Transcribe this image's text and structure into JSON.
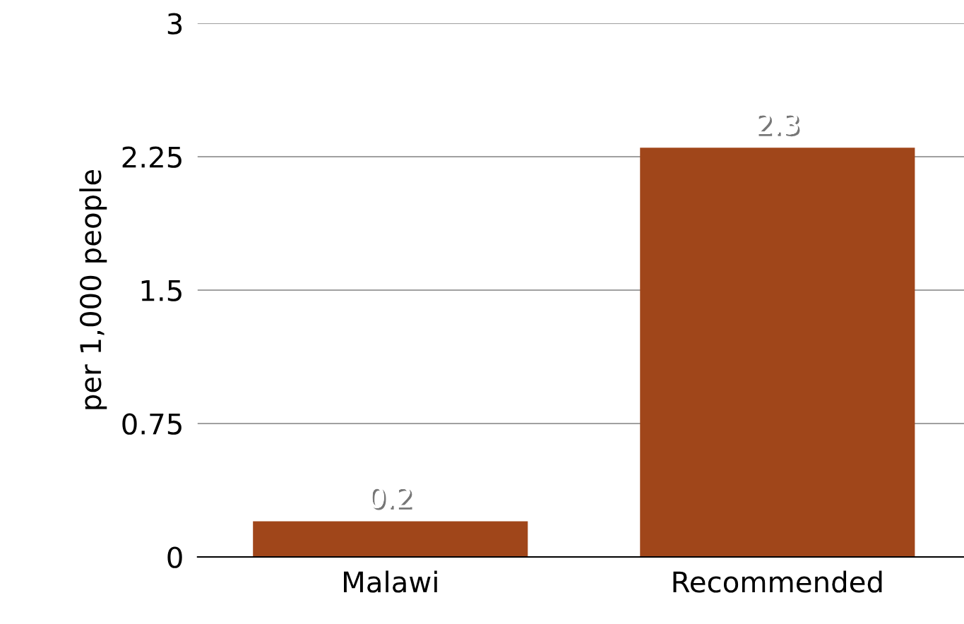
{
  "chart_data": {
    "type": "bar",
    "ylabel": "per 1,000 people",
    "categories": [
      "Malawi",
      "Recommended"
    ],
    "values": [
      0.2,
      2.3
    ],
    "color": "#a0461a",
    "ylim": [
      0,
      3
    ],
    "yticks": [
      0,
      0.75,
      1.5,
      2.25,
      3
    ],
    "grid": "y",
    "data_labels": true
  }
}
